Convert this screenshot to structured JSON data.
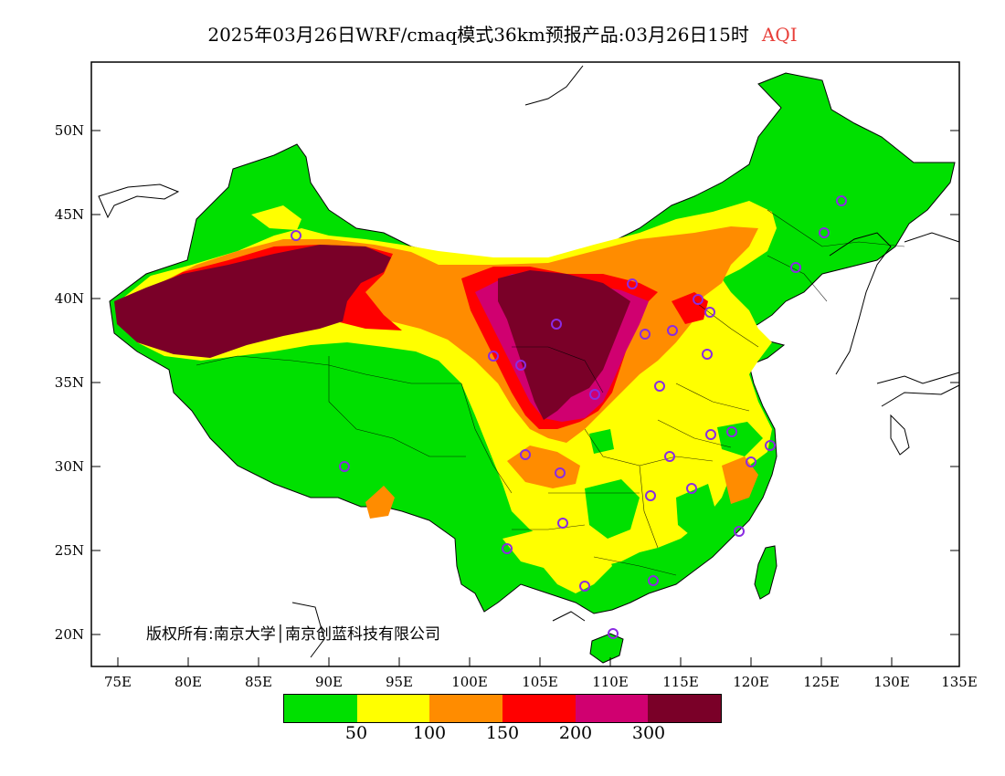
{
  "title": {
    "product": "2025年03月26日WRF/cmaq模式36km预报产品:03月26日15时",
    "variable": "AQI"
  },
  "axes": {
    "lat_labels": [
      "50N",
      "45N",
      "40N",
      "35N",
      "30N",
      "25N",
      "20N"
    ],
    "lon_labels": [
      "75E",
      "80E",
      "85E",
      "90E",
      "95E",
      "100E",
      "105E",
      "110E",
      "115E",
      "120E",
      "125E",
      "130E",
      "135E"
    ]
  },
  "credit": "版权所有:南京大学│南京创蓝科技有限公司",
  "legend": {
    "colors": [
      "#00e000",
      "#ffff00",
      "#ff8c00",
      "#ff0000",
      "#d00070",
      "#7a0028"
    ],
    "ticks": [
      "50",
      "100",
      "150",
      "200",
      "300"
    ]
  },
  "map_colors": {
    "water": "#ffffff",
    "border": "#000000",
    "site_marker": "#8a2be2"
  }
}
